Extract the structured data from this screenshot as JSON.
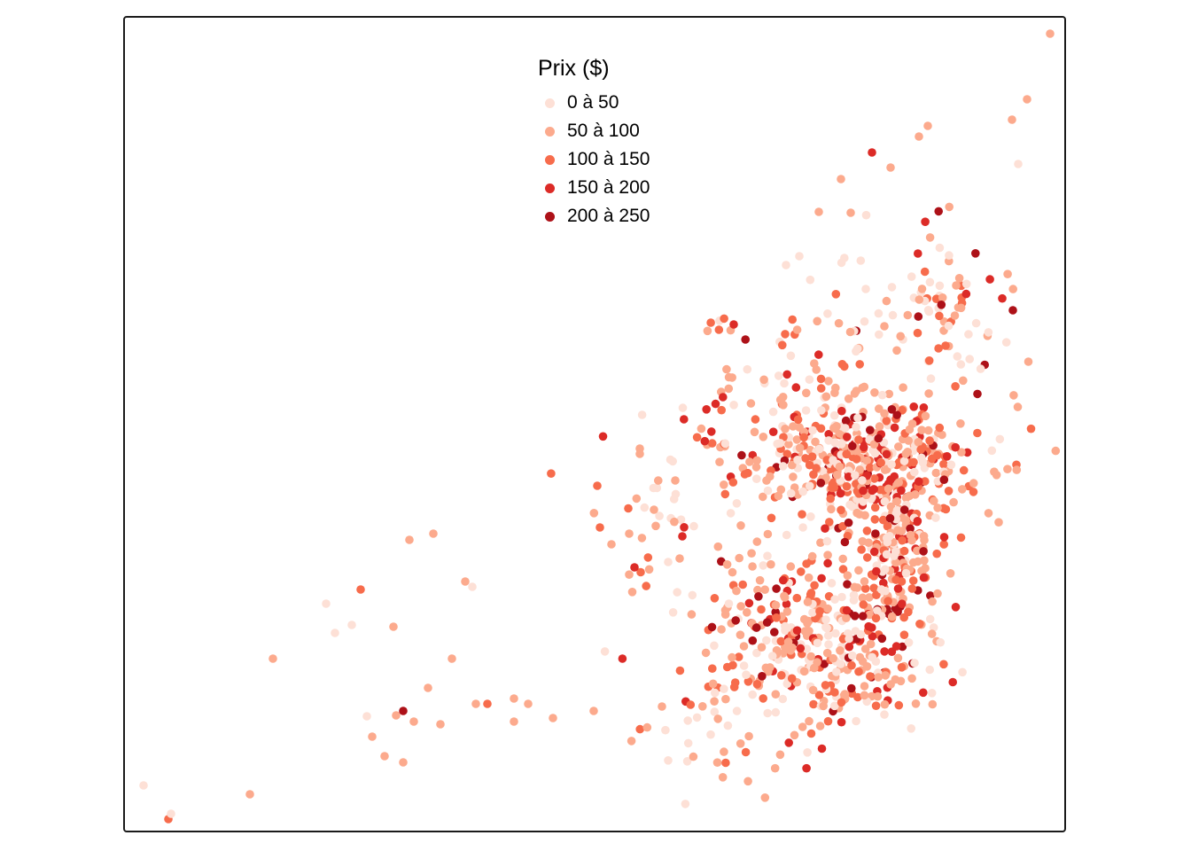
{
  "legend": {
    "title": "Prix ($)",
    "items": [
      {
        "label": "0 à 50",
        "color": "#fde0d6"
      },
      {
        "label": "50 à 100",
        "color": "#fcaa8d"
      },
      {
        "label": "100 à 150",
        "color": "#f76c4c"
      },
      {
        "label": "150 à 200",
        "color": "#dc2b27"
      },
      {
        "label": "200 à 250",
        "color": "#ad1118"
      }
    ]
  },
  "chart_data": {
    "type": "scatter",
    "encoding": "point color = price class (Prix $)",
    "classes": [
      "0 à 50",
      "50 à 100",
      "100 à 150",
      "150 à 200",
      "200 à 250"
    ]
  }
}
